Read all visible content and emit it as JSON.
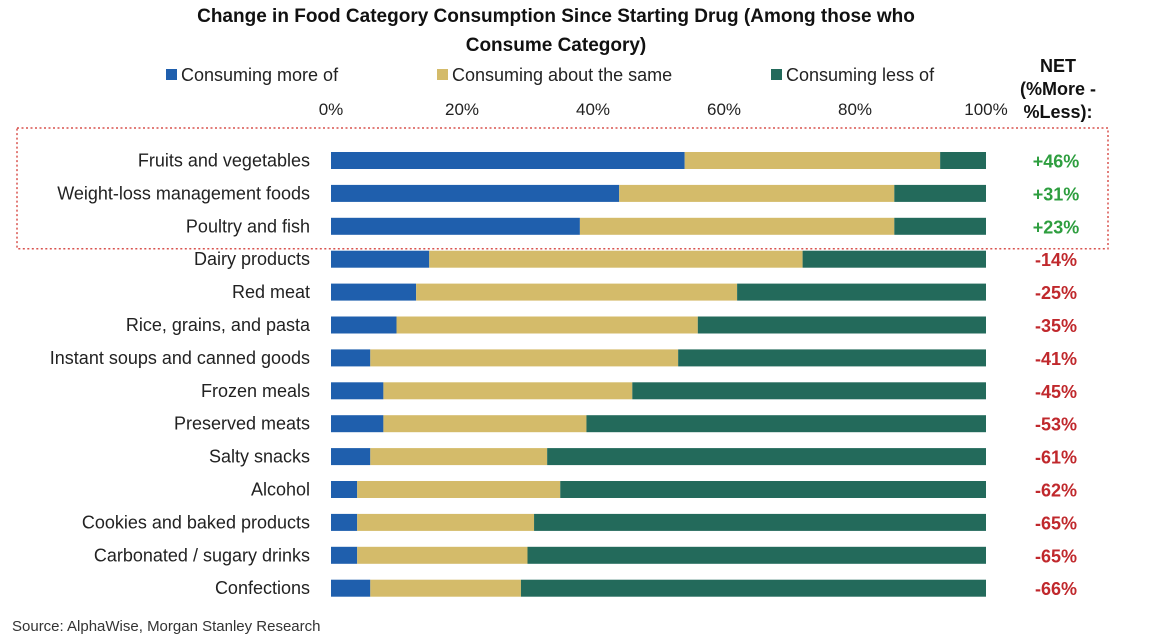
{
  "chart_data": {
    "type": "bar",
    "orientation": "horizontal",
    "stacked": true,
    "title_line1": "Change in Food Category Consumption Since Starting Drug (Among those who",
    "title_line2": "Consume Category)",
    "xlim": [
      0,
      100
    ],
    "x_ticks": [
      "0%",
      "20%",
      "40%",
      "60%",
      "80%",
      "100%"
    ],
    "legend_position": "top",
    "net_header": [
      "NET",
      "(%More -",
      "%Less):"
    ],
    "categories": [
      "Fruits and vegetables",
      "Weight-loss management foods",
      "Poultry and fish",
      "Dairy products",
      "Red meat",
      "Rice, grains, and pasta",
      "Instant soups and canned goods",
      "Frozen meals",
      "Preserved meats",
      "Salty snacks",
      "Alcohol",
      "Cookies and baked products",
      "Carbonated / sugary drinks",
      "Confections"
    ],
    "series": [
      {
        "name": "Consuming more of",
        "color": "#1f5fad",
        "values": [
          54,
          44,
          38,
          15,
          13,
          10,
          6,
          8,
          8,
          6,
          4,
          4,
          4,
          6
        ]
      },
      {
        "name": "Consuming about the same",
        "color": "#d4bb6a",
        "values": [
          39,
          42,
          48,
          57,
          49,
          46,
          47,
          38,
          31,
          27,
          31,
          27,
          26,
          23
        ]
      },
      {
        "name": "Consuming less of",
        "color": "#236a5b",
        "values": [
          7,
          14,
          14,
          28,
          38,
          44,
          47,
          54,
          61,
          67,
          65,
          69,
          70,
          71
        ]
      }
    ],
    "net_labels": [
      "+46%",
      "+31%",
      "+23%",
      "-14%",
      "-25%",
      "-35%",
      "-41%",
      "-45%",
      "-53%",
      "-61%",
      "-62%",
      "-65%",
      "-65%",
      "-66%"
    ],
    "net_colors": {
      "positive": "#2e9e3f",
      "negative": "#c0282c"
    },
    "highlighted_rows": [
      0,
      1,
      2
    ],
    "highlight_color": "#d9534f",
    "source": "Source: AlphaWise, Morgan Stanley Research"
  }
}
